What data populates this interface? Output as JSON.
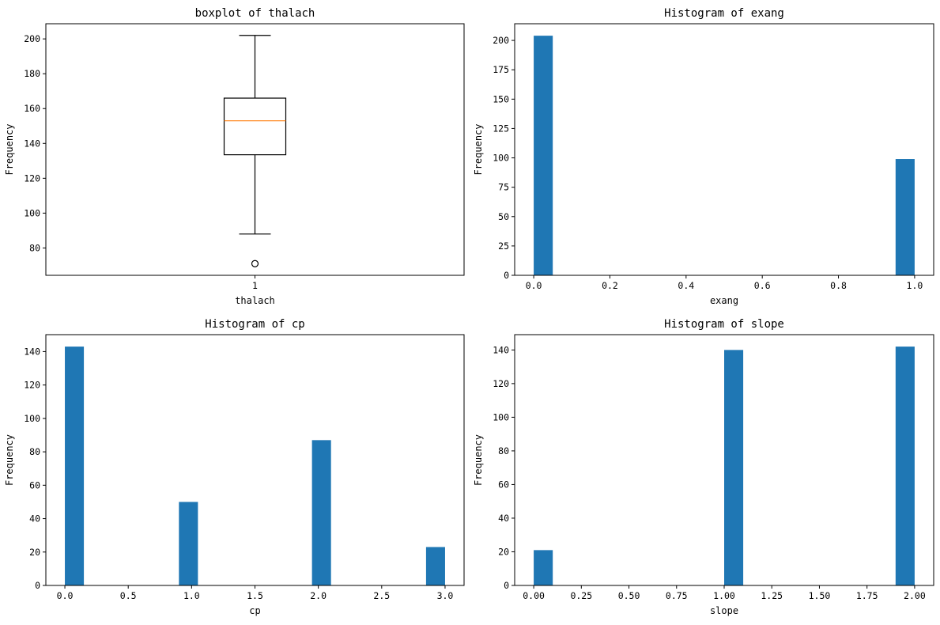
{
  "colors": {
    "bar": "#1f77b4",
    "median": "#ff7f0e",
    "box": "#000000"
  },
  "chart_data": [
    {
      "type": "box",
      "title": "boxplot of thalach",
      "xlabel": "thalach",
      "ylabel": "Frequency",
      "categories": [
        "1"
      ],
      "ylim": [
        64.3,
        208.7
      ],
      "yticks": [
        80,
        100,
        120,
        140,
        160,
        180,
        200
      ],
      "stats": {
        "whisker_low": 88,
        "q1": 133.5,
        "median": 153,
        "q3": 166,
        "whisker_high": 202
      },
      "outliers": [
        71
      ]
    },
    {
      "type": "bar",
      "title": "Histogram of exang",
      "xlabel": "exang",
      "ylabel": "Frequency",
      "xlim": [
        -0.05,
        1.05
      ],
      "ylim": [
        0,
        214.2
      ],
      "xticks": [
        0,
        0.2,
        0.4,
        0.6,
        0.8,
        1.0
      ],
      "xtick_labels": [
        "0.0",
        "0.2",
        "0.4",
        "0.6",
        "0.8",
        "1.0"
      ],
      "yticks": [
        0,
        25,
        50,
        75,
        100,
        125,
        150,
        175,
        200
      ],
      "bin_width": 0.05,
      "bins": [
        {
          "x": 0,
          "value": 204
        },
        {
          "x": 0.95,
          "value": 99
        }
      ]
    },
    {
      "type": "bar",
      "title": "Histogram of cp",
      "xlabel": "cp",
      "ylabel": "Frequency",
      "xlim": [
        -0.15,
        3.15
      ],
      "ylim": [
        0,
        150.15
      ],
      "xticks": [
        0,
        0.5,
        1.0,
        1.5,
        2.0,
        2.5,
        3.0
      ],
      "xtick_labels": [
        "0.0",
        "0.5",
        "1.0",
        "1.5",
        "2.0",
        "2.5",
        "3.0"
      ],
      "yticks": [
        0,
        20,
        40,
        60,
        80,
        100,
        120,
        140
      ],
      "bin_width": 0.15,
      "bins": [
        {
          "x": 0,
          "value": 143
        },
        {
          "x": 0.9,
          "value": 50
        },
        {
          "x": 1.95,
          "value": 87
        },
        {
          "x": 2.85,
          "value": 23
        }
      ]
    },
    {
      "type": "bar",
      "title": "Histogram of slope",
      "xlabel": "slope",
      "ylabel": "Frequency",
      "xlim": [
        -0.1,
        2.1
      ],
      "ylim": [
        0,
        149.1
      ],
      "xticks": [
        0,
        0.25,
        0.5,
        0.75,
        1.0,
        1.25,
        1.5,
        1.75,
        2.0
      ],
      "xtick_labels": [
        "0.00",
        "0.25",
        "0.50",
        "0.75",
        "1.00",
        "1.25",
        "1.50",
        "1.75",
        "2.00"
      ],
      "yticks": [
        0,
        20,
        40,
        60,
        80,
        100,
        120,
        140
      ],
      "bin_width": 0.1,
      "bins": [
        {
          "x": 0,
          "value": 21
        },
        {
          "x": 1.0,
          "value": 140
        },
        {
          "x": 1.9,
          "value": 142
        }
      ]
    }
  ]
}
